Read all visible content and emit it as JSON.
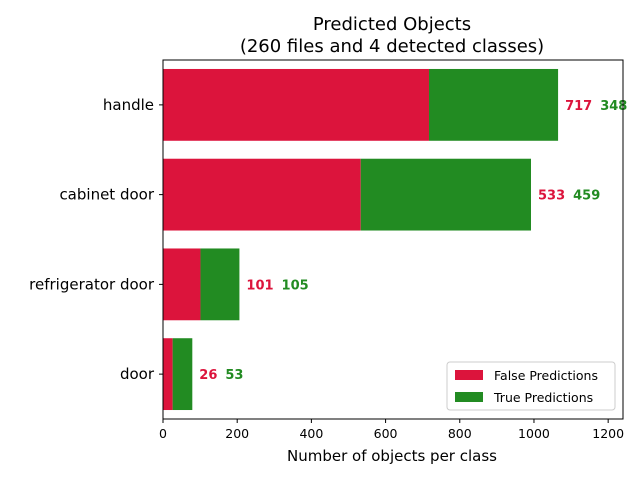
{
  "chart_data": {
    "type": "bar",
    "orientation": "horizontal",
    "stacked": true,
    "title": "Predicted Objects",
    "subtitle": "(260 files and 4 detected classes)",
    "xlabel": "Number of objects per class",
    "ylabel": "",
    "xlim": [
      0,
      1240
    ],
    "xticks": [
      0,
      200,
      400,
      600,
      800,
      1000,
      1200
    ],
    "categories": [
      "door",
      "refrigerator door",
      "cabinet door",
      "handle"
    ],
    "series": [
      {
        "name": "False Predictions",
        "color": "#dc143c",
        "values": [
          26,
          101,
          533,
          717
        ]
      },
      {
        "name": "True Predictions",
        "color": "#228b22",
        "values": [
          53,
          105,
          459,
          348
        ]
      }
    ],
    "legend": "lower-right",
    "grid": false
  }
}
